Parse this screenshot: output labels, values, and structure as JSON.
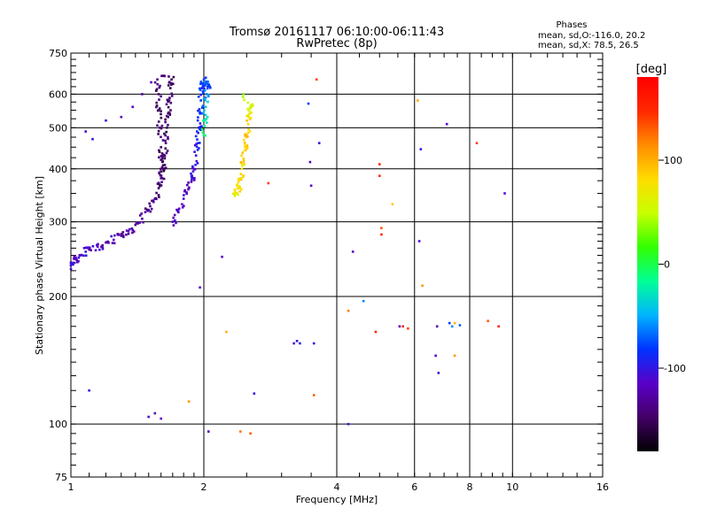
{
  "chart_data": {
    "type": "scatter",
    "title": "Tromsø 20161117 06:10:00-06:11:43",
    "subtitle": "RwPretec (8p)",
    "xlabel": "Frequency [MHz]",
    "ylabel": "Stationary phase Virtual Height [km]",
    "x_scale": "log",
    "y_scale": "log",
    "xlim": [
      1,
      16
    ],
    "ylim": [
      75,
      750
    ],
    "x_ticks": [
      1,
      2,
      4,
      6,
      8,
      10,
      16
    ],
    "y_ticks": [
      75,
      100,
      200,
      300,
      400,
      500,
      600,
      750
    ],
    "x_grid": [
      2,
      4,
      6,
      8,
      10
    ],
    "y_grid": [
      100,
      200,
      300,
      400,
      500,
      600
    ],
    "grid": true,
    "stats": {
      "title": "Phases",
      "line_o": "mean, sd,O:-116.0, 20.2",
      "line_x": "mean, sd,X:  78.5, 26.5"
    },
    "colorbar": {
      "label": "[deg]",
      "range": [
        -180,
        180
      ],
      "ticks": [
        {
          "value": 100,
          "label": "100"
        },
        {
          "value": 0,
          "label": "0"
        },
        {
          "value": -100,
          "label": "-100"
        }
      ],
      "colors": [
        "#000000",
        "#440066",
        "#5a00c8",
        "#0032ff",
        "#00b4ff",
        "#00ff96",
        "#32ff00",
        "#c8ff00",
        "#ffdc00",
        "#ff8c00",
        "#ff2800",
        "#ff0000"
      ]
    },
    "bands": [
      {
        "name": "",
        "points": [
          [
            1.0,
            232,
            -110
          ],
          [
            1.0,
            240,
            -105
          ],
          [
            1.02,
            245,
            -115
          ],
          [
            1.05,
            250,
            -110
          ],
          [
            1.08,
            255,
            -100
          ],
          [
            1.1,
            258,
            -120
          ],
          [
            1.15,
            262,
            -110
          ],
          [
            1.2,
            268,
            -125
          ],
          [
            1.25,
            272,
            -115
          ],
          [
            1.3,
            278,
            -130
          ],
          [
            1.35,
            285,
            -120
          ],
          [
            1.4,
            295,
            -135
          ],
          [
            1.45,
            305,
            -125
          ],
          [
            1.5,
            320,
            -140
          ],
          [
            1.55,
            340,
            -135
          ],
          [
            1.58,
            360,
            -145
          ],
          [
            1.6,
            380,
            -140
          ],
          [
            1.62,
            400,
            -150
          ],
          [
            1.63,
            430,
            -145
          ],
          [
            1.64,
            460,
            -140
          ],
          [
            1.65,
            500,
            -150
          ],
          [
            1.66,
            540,
            -145
          ],
          [
            1.67,
            580,
            -140
          ],
          [
            1.68,
            620,
            -150
          ],
          [
            1.69,
            650,
            -145
          ],
          [
            1.57,
            650,
            -140
          ],
          [
            1.58,
            600,
            -145
          ],
          [
            1.58,
            550,
            -150
          ],
          [
            1.59,
            500,
            -140
          ],
          [
            1.6,
            450,
            -145
          ],
          [
            1.6,
            420,
            -150
          ],
          [
            1.61,
            380,
            -140
          ]
        ]
      },
      {
        "name": "",
        "points": [
          [
            1.7,
            300,
            -120
          ],
          [
            1.75,
            320,
            -115
          ],
          [
            1.8,
            340,
            -110
          ],
          [
            1.85,
            360,
            -120
          ],
          [
            1.88,
            380,
            -105
          ],
          [
            1.9,
            400,
            -110
          ],
          [
            1.92,
            430,
            -100
          ],
          [
            1.94,
            460,
            -95
          ],
          [
            1.95,
            500,
            -90
          ],
          [
            1.96,
            540,
            -85
          ],
          [
            1.97,
            580,
            -80
          ],
          [
            1.98,
            620,
            -85
          ],
          [
            2.0,
            650,
            -75
          ],
          [
            2.02,
            640,
            -70
          ],
          [
            2.05,
            630,
            -80
          ],
          [
            2.03,
            600,
            -60
          ],
          [
            2.02,
            560,
            -40
          ],
          [
            2.01,
            520,
            -20
          ],
          [
            2.0,
            480,
            -10
          ]
        ]
      },
      {
        "name": "",
        "points": [
          [
            2.35,
            345,
            60
          ],
          [
            2.37,
            350,
            70
          ],
          [
            2.4,
            360,
            80
          ],
          [
            2.42,
            380,
            85
          ],
          [
            2.44,
            400,
            75
          ],
          [
            2.46,
            420,
            90
          ],
          [
            2.48,
            450,
            80
          ],
          [
            2.5,
            480,
            95
          ],
          [
            2.52,
            510,
            85
          ],
          [
            2.54,
            540,
            70
          ],
          [
            2.56,
            560,
            60
          ],
          [
            2.46,
            600,
            30
          ]
        ]
      }
    ],
    "points": [
      [
        1.08,
        490,
        -110
      ],
      [
        1.12,
        470,
        -105
      ],
      [
        1.2,
        520,
        -100
      ],
      [
        1.3,
        530,
        -120
      ],
      [
        1.38,
        560,
        -115
      ],
      [
        1.45,
        600,
        -125
      ],
      [
        1.52,
        640,
        -120
      ],
      [
        1.1,
        120,
        -100
      ],
      [
        1.5,
        104,
        -110
      ],
      [
        1.55,
        106,
        -120
      ],
      [
        1.6,
        103,
        -115
      ],
      [
        1.85,
        113,
        110
      ],
      [
        1.96,
        210,
        -110
      ],
      [
        2.05,
        96,
        -120
      ],
      [
        2.2,
        248,
        -115
      ],
      [
        2.25,
        165,
        100
      ],
      [
        2.42,
        96,
        120
      ],
      [
        2.55,
        95,
        130
      ],
      [
        2.6,
        118,
        -100
      ],
      [
        2.8,
        370,
        140
      ],
      [
        3.2,
        155,
        -110
      ],
      [
        3.25,
        157,
        -100
      ],
      [
        3.3,
        155,
        -90
      ],
      [
        3.45,
        570,
        -80
      ],
      [
        3.48,
        415,
        -110
      ],
      [
        3.5,
        365,
        -120
      ],
      [
        3.6,
        650,
        140
      ],
      [
        3.65,
        460,
        -100
      ],
      [
        3.55,
        155,
        -100
      ],
      [
        3.55,
        117,
        130
      ],
      [
        4.25,
        100,
        -100
      ],
      [
        4.25,
        185,
        120
      ],
      [
        4.35,
        255,
        -110
      ],
      [
        4.6,
        195,
        -60
      ],
      [
        5.0,
        410,
        150
      ],
      [
        5.0,
        385,
        145
      ],
      [
        5.05,
        290,
        130
      ],
      [
        5.05,
        280,
        150
      ],
      [
        5.35,
        330,
        90
      ],
      [
        5.65,
        170,
        150
      ],
      [
        5.8,
        168,
        140
      ],
      [
        6.1,
        580,
        100
      ],
      [
        6.15,
        270,
        -110
      ],
      [
        6.2,
        445,
        -100
      ],
      [
        6.25,
        212,
        110
      ],
      [
        6.7,
        145,
        -110
      ],
      [
        6.75,
        170,
        -120
      ],
      [
        6.8,
        132,
        -100
      ],
      [
        7.1,
        510,
        -110
      ],
      [
        7.2,
        173,
        -80
      ],
      [
        7.3,
        170,
        -60
      ],
      [
        7.4,
        173,
        100
      ],
      [
        7.4,
        145,
        110
      ],
      [
        7.6,
        171,
        -70
      ],
      [
        8.3,
        460,
        140
      ],
      [
        8.8,
        175,
        130
      ],
      [
        9.3,
        170,
        150
      ],
      [
        9.6,
        350,
        -110
      ],
      [
        5.55,
        170,
        -120
      ],
      [
        4.9,
        165,
        150
      ]
    ]
  }
}
